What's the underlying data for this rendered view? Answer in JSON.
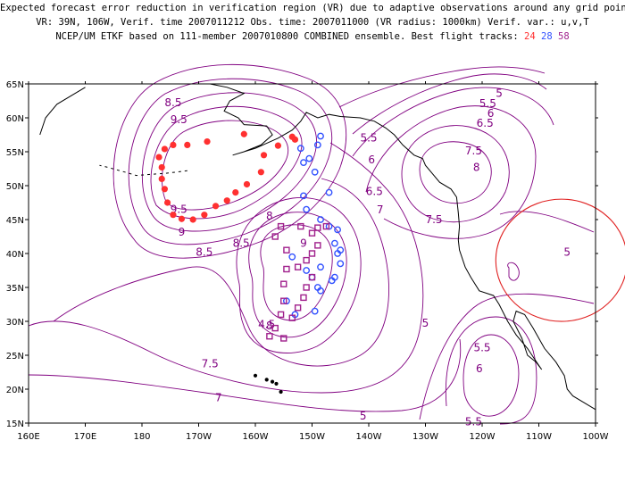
{
  "header": {
    "line1": "Expected forecast error reduction in verification region (VR) due to adaptive observations around any grid point.",
    "line2": "VR: 39N, 106W, Verif. time 2007011212  Obs. time: 2007011000 (VR radius: 1000km)   Verif. var.: u,v,T",
    "line3_prefix": "NCEP/UM ETKF based on 111-member 2007010800 COMBINED ensemble.  Best flight tracks:",
    "track_a": "24",
    "track_b": "28",
    "track_c": "58"
  },
  "axes": {
    "lat_labels": [
      "65N",
      "60N",
      "55N",
      "50N",
      "45N",
      "40N",
      "35N",
      "30N",
      "25N",
      "20N",
      "15N"
    ],
    "lon_labels": [
      "160E",
      "170E",
      "180",
      "170W",
      "160W",
      "150W",
      "140W",
      "130W",
      "120W",
      "110W",
      "100W"
    ]
  },
  "contour_labels": [
    {
      "text": "8.5",
      "lon": -174.5,
      "lat": 61.7
    },
    {
      "text": "9.5",
      "lon": -173.5,
      "lat": 59.2
    },
    {
      "text": "9.5",
      "lon": -173.5,
      "lat": 46.0
    },
    {
      "text": "9",
      "lon": -173.0,
      "lat": 42.6
    },
    {
      "text": "8.5",
      "lon": -169.0,
      "lat": 39.7
    },
    {
      "text": "8.5",
      "lon": -162.5,
      "lat": 41.0
    },
    {
      "text": "8",
      "lon": -157.5,
      "lat": 45.0
    },
    {
      "text": "9",
      "lon": -151.5,
      "lat": 41.0
    },
    {
      "text": "8",
      "lon": -157.5,
      "lat": 28.8
    },
    {
      "text": "7.5",
      "lon": -168.0,
      "lat": 23.2
    },
    {
      "text": "7",
      "lon": -166.5,
      "lat": 18.2
    },
    {
      "text": "4.5",
      "lon": -158.0,
      "lat": 29.0
    },
    {
      "text": "5.5",
      "lon": -140.0,
      "lat": 56.5
    },
    {
      "text": "6",
      "lon": -139.5,
      "lat": 53.3
    },
    {
      "text": "6.5",
      "lon": -139.0,
      "lat": 48.6
    },
    {
      "text": "7",
      "lon": -138.0,
      "lat": 45.9
    },
    {
      "text": "7.5",
      "lon": -128.5,
      "lat": 44.5
    },
    {
      "text": "8",
      "lon": -121.0,
      "lat": 52.2
    },
    {
      "text": "7.5",
      "lon": -121.5,
      "lat": 54.6
    },
    {
      "text": "6.5",
      "lon": -119.5,
      "lat": 58.7
    },
    {
      "text": "6",
      "lon": -118.5,
      "lat": 60.1
    },
    {
      "text": "5.5",
      "lon": -119.0,
      "lat": 61.6
    },
    {
      "text": "5",
      "lon": -117.0,
      "lat": 63.1
    },
    {
      "text": "5",
      "lon": -105.0,
      "lat": 39.7
    },
    {
      "text": "5",
      "lon": -130.0,
      "lat": 29.2
    },
    {
      "text": "5.5",
      "lon": -120.0,
      "lat": 25.6
    },
    {
      "text": "6",
      "lon": -120.5,
      "lat": 22.5
    },
    {
      "text": "5.5",
      "lon": -121.5,
      "lat": 14.7
    },
    {
      "text": "5",
      "lon": -141.0,
      "lat": 15.5
    }
  ],
  "flight_tracks": [
    {
      "id": "24",
      "color": "#ff3030",
      "marker": "dot",
      "points": [
        [
          -153.5,
          57.2
        ],
        [
          -156.0,
          55.9
        ],
        [
          -158.5,
          54.5
        ],
        [
          -159.0,
          52.0
        ],
        [
          -161.5,
          50.2
        ],
        [
          -163.5,
          49.0
        ],
        [
          -165.0,
          47.8
        ],
        [
          -167.0,
          47.0
        ],
        [
          -169.0,
          45.7
        ],
        [
          -171.0,
          45.0
        ],
        [
          -173.0,
          45.1
        ],
        [
          -174.5,
          45.7
        ],
        [
          -175.5,
          47.5
        ],
        [
          -176.0,
          49.5
        ],
        [
          -176.5,
          51.0
        ],
        [
          -176.5,
          52.7
        ],
        [
          -177.0,
          54.2
        ],
        [
          -176.0,
          55.4
        ],
        [
          -174.5,
          56.0
        ],
        [
          -172.0,
          56.0
        ],
        [
          -168.5,
          56.5
        ],
        [
          -162.0,
          57.6
        ],
        [
          -153.0,
          56.8
        ]
      ]
    },
    {
      "id": "28",
      "color": "#3050ff",
      "marker": "circle",
      "points": [
        [
          -148.5,
          57.3
        ],
        [
          -149.0,
          56.0
        ],
        [
          -150.5,
          54.0
        ],
        [
          -152.0,
          55.5
        ],
        [
          -151.5,
          53.4
        ],
        [
          -149.5,
          52.0
        ],
        [
          -147.0,
          49.0
        ],
        [
          -145.5,
          43.5
        ],
        [
          -145.5,
          40.0
        ],
        [
          -145.0,
          38.5
        ],
        [
          -146.5,
          36.0
        ],
        [
          -148.5,
          38.0
        ],
        [
          -149.0,
          35.0
        ],
        [
          -150.0,
          36.5
        ],
        [
          -151.0,
          37.5
        ],
        [
          -153.5,
          39.5
        ],
        [
          -154.5,
          33.0
        ],
        [
          -153.0,
          31.0
        ],
        [
          -149.5,
          31.5
        ],
        [
          -148.5,
          34.5
        ],
        [
          -146.0,
          36.5
        ],
        [
          -145.0,
          40.5
        ],
        [
          -146.0,
          41.5
        ],
        [
          -147.0,
          44.0
        ],
        [
          -148.5,
          45.0
        ],
        [
          -151.0,
          46.5
        ],
        [
          -151.5,
          48.5
        ]
      ]
    },
    {
      "id": "58",
      "color": "#a0208c",
      "marker": "square",
      "points": [
        [
          -147.5,
          44.0
        ],
        [
          -149.0,
          43.8
        ],
        [
          -149.0,
          41.2
        ],
        [
          -150.0,
          40.0
        ],
        [
          -151.0,
          39.0
        ],
        [
          -152.5,
          38.0
        ],
        [
          -154.5,
          37.7
        ],
        [
          -155.0,
          35.5
        ],
        [
          -155.0,
          33.0
        ],
        [
          -155.5,
          31.0
        ],
        [
          -156.5,
          29.0
        ],
        [
          -157.5,
          27.8
        ],
        [
          -155.0,
          27.5
        ],
        [
          -153.5,
          30.5
        ],
        [
          -152.5,
          32.0
        ],
        [
          -151.5,
          33.5
        ],
        [
          -151.0,
          35.0
        ],
        [
          -150.0,
          36.5
        ],
        [
          -154.5,
          40.5
        ],
        [
          -156.5,
          42.5
        ],
        [
          -155.5,
          44.0
        ],
        [
          -152.0,
          44.0
        ],
        [
          -150.0,
          43.0
        ]
      ]
    }
  ],
  "verification_region": {
    "center_lon": -106,
    "center_lat": 39,
    "radius_km": 1000,
    "color": "#e02020"
  },
  "colors": {
    "contour": "#800080",
    "coast": "#000000"
  }
}
